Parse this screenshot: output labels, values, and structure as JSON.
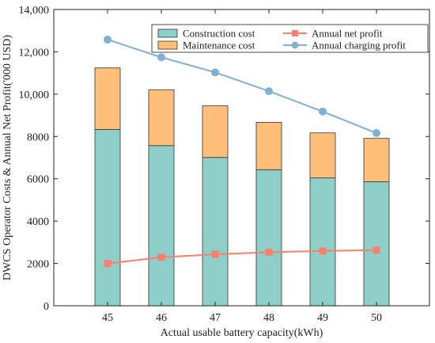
{
  "chart_data": {
    "type": "bar",
    "xlabel": "Actual usable battery capacity(kWh)",
    "ylabel": "DWCS Operator Costs & Annual Net Profit('000 USD)",
    "categories": [
      "45",
      "46",
      "47",
      "48",
      "49",
      "50"
    ],
    "ylim": [
      0,
      14000
    ],
    "yticks": [
      0,
      2000,
      4000,
      6000,
      8000,
      10000,
      12000,
      14000
    ],
    "ytick_labels": [
      "0",
      "2000",
      "4000",
      "6000",
      "8000",
      "10,000",
      "12,000",
      "14,000"
    ],
    "stacked_bars": [
      {
        "name": "Construction cost",
        "color": "#8ecfc9",
        "values": [
          8330,
          7570,
          7010,
          6430,
          6040,
          5860
        ]
      },
      {
        "name": "Maintenance cost",
        "color": "#ffbe7a",
        "values": [
          2910,
          2640,
          2440,
          2240,
          2130,
          2050
        ]
      }
    ],
    "lines": [
      {
        "name": "Annual net profit",
        "color": "#fa7f6f",
        "marker": "square",
        "values": [
          2000,
          2290,
          2430,
          2530,
          2590,
          2630
        ]
      },
      {
        "name": "Annual charging profit",
        "color": "#82b0d2",
        "marker": "circle",
        "values": [
          12580,
          11740,
          11030,
          10140,
          9180,
          8160
        ]
      }
    ],
    "legend": {
      "placement": "top-right",
      "entries": [
        "Construction cost",
        "Maintenance cost",
        "Annual net profit",
        "Annual charging profit"
      ]
    },
    "grid": false
  }
}
